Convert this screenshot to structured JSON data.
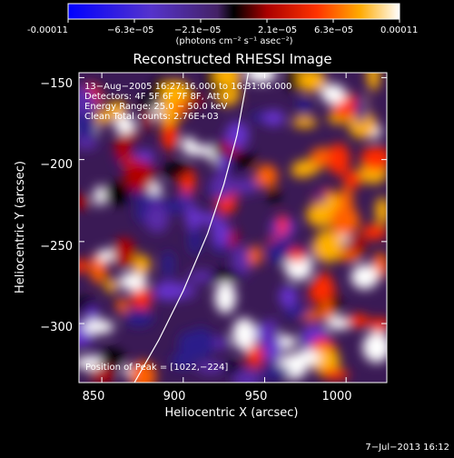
{
  "colorbar": {
    "tick_labels": [
      "-0.00011",
      "−6.3e−05",
      "−2.1e−05",
      "2.1e−05",
      "6.3e−05",
      "0.00011"
    ],
    "unit_label": "(photons cm⁻² s⁻¹ asec⁻²)",
    "range": [
      -0.00011,
      0.00011
    ]
  },
  "chart_data": {
    "type": "heatmap",
    "title": "Reconstructed RHESSI Image",
    "xlabel": "Heliocentric X (arcsec)",
    "ylabel": "Heliocentric Y (arcsec)",
    "xlim": [
      836,
      1025
    ],
    "ylim": [
      -336,
      -147
    ],
    "x_ticks": [
      850,
      900,
      950,
      1000
    ],
    "y_ticks": [
      -300,
      -250,
      -200,
      -150
    ],
    "x_tick_labels": [
      "850",
      "900",
      "950",
      "1000"
    ],
    "y_tick_labels": [
      "−300",
      "−250",
      "−200",
      "−150"
    ],
    "limb_curve": [
      [
        870,
        -336
      ],
      [
        885,
        -310
      ],
      [
        900,
        -280
      ],
      [
        915,
        -245
      ],
      [
        925,
        -215
      ],
      [
        933,
        -185
      ],
      [
        940,
        -147
      ]
    ],
    "peak": [
      1022,
      -224
    ],
    "info_lines": [
      "13−Aug−2005 16:27:16.000 to 16:31:06.000",
      "Detectors: 4F 5F 6F 7F 8F, Att 0",
      "Energy Range: 25.0 − 50.0 keV",
      "Clean    Total counts: 2.76E+03"
    ],
    "peak_label": "Position of Peak = [1022,−224]"
  },
  "footer": {
    "timestamp": "7−Jul−2013 16:12"
  }
}
